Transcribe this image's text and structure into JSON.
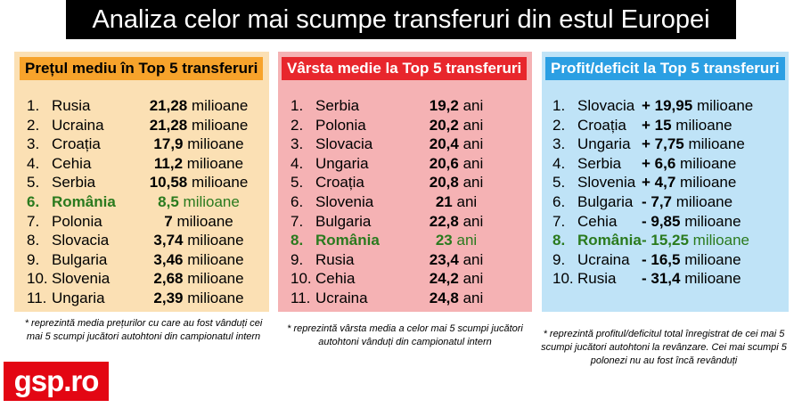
{
  "title": "Analiza celor mai scumpe transferuri din estul Europei",
  "colors": {
    "highlight": "#2a7a1e",
    "panel1": "#fbe0b4",
    "panel1_header": "#f7a32b",
    "panel2": "#f5b2b4",
    "panel2_header": "#e8262c",
    "panel3": "#bfe3f7",
    "panel3_header": "#2b9fe3",
    "logo": "#e30613"
  },
  "panels": [
    {
      "header": "Prețul mediu în Top 5 transferuri",
      "rows": [
        {
          "num": "1.",
          "name": "Rusia",
          "value": "21,28",
          "unit": "milioane",
          "highlight": false
        },
        {
          "num": "2.",
          "name": "Ucraina",
          "value": "21,28",
          "unit": "milioane",
          "highlight": false
        },
        {
          "num": "3.",
          "name": "Croația",
          "value": "17,9",
          "unit": "milioane",
          "highlight": false
        },
        {
          "num": "4.",
          "name": "Cehia",
          "value": "11,2",
          "unit": "milioane",
          "highlight": false
        },
        {
          "num": "5.",
          "name": "Serbia",
          "value": "10,58",
          "unit": "milioane",
          "highlight": false
        },
        {
          "num": "6.",
          "name": "România",
          "value": "8,5",
          "unit": "milioane",
          "highlight": true
        },
        {
          "num": "7.",
          "name": "Polonia",
          "value": "7",
          "unit": "milioane",
          "highlight": false
        },
        {
          "num": "8.",
          "name": "Slovacia",
          "value": "3,74",
          "unit": "milioane",
          "highlight": false
        },
        {
          "num": "9.",
          "name": "Bulgaria",
          "value": "3,46",
          "unit": "milioane",
          "highlight": false
        },
        {
          "num": "10.",
          "name": "Slovenia",
          "value": "2,68",
          "unit": "milioane",
          "highlight": false
        },
        {
          "num": "11.",
          "name": "Ungaria",
          "value": "2,39",
          "unit": "milioane",
          "highlight": false
        }
      ],
      "note": "* reprezintă media prețurilor cu care au fost vânduți cei mai 5 scumpi jucători autohtoni din campionatul intern"
    },
    {
      "header": "Vârsta medie la Top 5 transferuri",
      "rows": [
        {
          "num": "1.",
          "name": "Serbia",
          "value": "19,2",
          "unit": "ani",
          "highlight": false
        },
        {
          "num": "2.",
          "name": "Polonia",
          "value": "20,2",
          "unit": "ani",
          "highlight": false
        },
        {
          "num": "3.",
          "name": "Slovacia",
          "value": "20,4",
          "unit": "ani",
          "highlight": false
        },
        {
          "num": "4.",
          "name": "Ungaria",
          "value": "20,6",
          "unit": "ani",
          "highlight": false
        },
        {
          "num": "5.",
          "name": "Croația",
          "value": "20,8",
          "unit": "ani",
          "highlight": false
        },
        {
          "num": "6.",
          "name": "Slovenia",
          "value": "21",
          "unit": "ani",
          "highlight": false
        },
        {
          "num": "7.",
          "name": "Bulgaria",
          "value": "22,8",
          "unit": "ani",
          "highlight": false
        },
        {
          "num": "8.",
          "name": "România",
          "value": "23",
          "unit": "ani",
          "highlight": true
        },
        {
          "num": "9.",
          "name": "Rusia",
          "value": "23,4",
          "unit": "ani",
          "highlight": false
        },
        {
          "num": "10.",
          "name": "Cehia",
          "value": "24,2",
          "unit": "ani",
          "highlight": false
        },
        {
          "num": "11.",
          "name": "Ucraina",
          "value": "24,8",
          "unit": "ani",
          "highlight": false
        }
      ],
      "note": "* reprezintă vârsta media a celor mai 5 scumpi jucători autohtoni vânduți din campionatul intern"
    },
    {
      "header": "Profit/deficit la Top 5 transferuri",
      "rows": [
        {
          "num": "1.",
          "name": "Slovacia",
          "value": "+  19,95",
          "unit": "milioane",
          "highlight": false
        },
        {
          "num": "2.",
          "name": "Croația",
          "value": "+ 15",
          "unit": "milioane",
          "highlight": false
        },
        {
          "num": "3.",
          "name": "Ungaria",
          "value": "+ 7,75",
          "unit": "milioane",
          "highlight": false
        },
        {
          "num": "4.",
          "name": "Serbia",
          "value": "+ 6,6",
          "unit": "milioane",
          "highlight": false
        },
        {
          "num": "5.",
          "name": "Slovenia",
          "value": "+ 4,7",
          "unit": "milioane",
          "highlight": false
        },
        {
          "num": "6.",
          "name": "Bulgaria",
          "value": "-  7,7",
          "unit": "milioane",
          "highlight": false
        },
        {
          "num": "7.",
          "name": "Cehia",
          "value": "-  9,85",
          "unit": "milioane",
          "highlight": false
        },
        {
          "num": "8.",
          "name": "România",
          "value": "- 15,25",
          "unit": "milioane",
          "highlight": true
        },
        {
          "num": "9.",
          "name": "Ucraina",
          "value": "- 16,5",
          "unit": "milioane",
          "highlight": false
        },
        {
          "num": "10.",
          "name": "Rusia",
          "value": "- 31,4",
          "unit": "milioane",
          "highlight": false
        }
      ],
      "note": "* reprezintă profitul/deficitul total înregistrat de cei mai 5 scumpi jucători autohtoni la revânzare. Cei mai scumpi 5 polonezi nu au fost încă revânduți"
    }
  ],
  "logo": "gsp.ro"
}
